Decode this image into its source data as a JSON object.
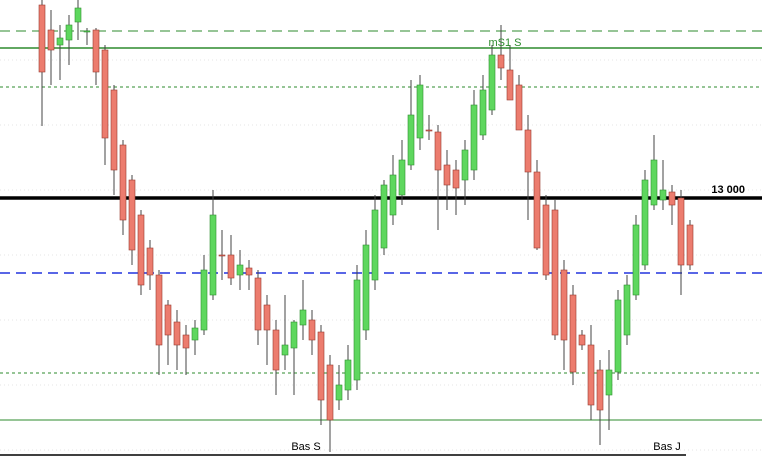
{
  "chart_data": {
    "type": "candlestick",
    "ylim": [
      12728,
      13198
    ],
    "up_color": "#5ed75e",
    "down_color": "#ec7c6e",
    "wick_color": "#444444",
    "open": [
      13193,
      13168,
      13153,
      13158,
      13176,
      13166,
      13168,
      13148,
      13108,
      13053,
      13018,
      12983,
      12950,
      12923,
      12893,
      12876,
      12863,
      12858,
      12868,
      12903,
      12943,
      12943,
      12923,
      12930,
      12920,
      12893,
      12868,
      12843,
      12850,
      12873,
      12878,
      12866,
      12833,
      12798,
      12808,
      12818,
      12868,
      12918,
      12950,
      12983,
      13003,
      13033,
      13060,
      13068,
      13066,
      13033,
      13028,
      13018,
      13028,
      13063,
      13088,
      13143,
      13128,
      13113,
      13068,
      13026,
      12993,
      12988,
      12928,
      12903,
      12863,
      12853,
      12828,
      12803,
      12826,
      12863,
      12903,
      12933,
      12993,
      12998,
      13006,
      13000,
      12973
    ],
    "high": [
      13198,
      13188,
      13173,
      13183,
      13198,
      13170,
      13170,
      13153,
      13113,
      13058,
      13023,
      12988,
      12958,
      12928,
      12898,
      12888,
      12873,
      12878,
      12943,
      13008,
      12968,
      12963,
      12948,
      12938,
      12928,
      12903,
      12878,
      12903,
      12878,
      12918,
      12888,
      12873,
      12843,
      12833,
      12853,
      12933,
      12968,
      13003,
      13018,
      13043,
      13058,
      13118,
      13123,
      13083,
      13073,
      13048,
      13038,
      13058,
      13108,
      13123,
      13153,
      13173,
      13153,
      13123,
      13083,
      13038,
      13003,
      12998,
      12938,
      12913,
      12868,
      12873,
      12838,
      12848,
      12908,
      12923,
      12983,
      13028,
      13063,
      13038,
      13013,
      13008,
      12978
    ],
    "low": [
      13072,
      13113,
      13118,
      13133,
      13158,
      13153,
      13113,
      13033,
      13003,
      12963,
      12933,
      12903,
      12908,
      12823,
      12833,
      12828,
      12823,
      12843,
      12863,
      12898,
      12918,
      12913,
      12908,
      12908,
      12853,
      12833,
      12803,
      12828,
      12803,
      12858,
      12843,
      12773,
      12746,
      12788,
      12798,
      12808,
      12858,
      12908,
      12943,
      12973,
      12993,
      13028,
      13048,
      13058,
      12968,
      12988,
      12983,
      12993,
      13018,
      13058,
      13083,
      13118,
      13098,
      13068,
      12978,
      12948,
      12918,
      12858,
      12828,
      12813,
      12848,
      12778,
      12753,
      12768,
      12818,
      12853,
      12898,
      12928,
      12988,
      12988,
      12973,
      12903,
      12928
    ],
    "close": [
      13126,
      13148,
      13160,
      13173,
      13190,
      13167,
      13126,
      13060,
      13028,
      12978,
      12948,
      12913,
      12923,
      12853,
      12863,
      12853,
      12850,
      12870,
      12928,
      12983,
      12942,
      12920,
      12933,
      12923,
      12868,
      12868,
      12828,
      12853,
      12876,
      12888,
      12858,
      12798,
      12778,
      12813,
      12838,
      12918,
      12953,
      12988,
      13013,
      13023,
      13038,
      13083,
      13113,
      13067,
      13028,
      13013,
      13010,
      13048,
      13093,
      13108,
      13143,
      13130,
      13098,
      13068,
      13026,
      12950,
      12923,
      12863,
      12858,
      12826,
      12853,
      12793,
      12788,
      12828,
      12898,
      12913,
      12973,
      13018,
      13038,
      13008,
      12993,
      12933,
      12933
    ],
    "levels": [
      {
        "value": 13167,
        "color": "#2e8b2e",
        "style": "dashed",
        "width": 1
      },
      {
        "value": 13150,
        "color": "#2e8b2e",
        "style": "solid",
        "width": 1.5
      },
      {
        "value": 13111,
        "color": "#2e8b2e",
        "style": "dotted",
        "width": 1
      },
      {
        "value": 13000,
        "label": "13 000",
        "color": "#000000",
        "style": "solid",
        "width": 3.5
      },
      {
        "value": 12925,
        "color": "#2233dd",
        "style": "dashed",
        "width": 1.5
      },
      {
        "value": 12825,
        "color": "#2e8b2e",
        "style": "dotted",
        "width": 1
      },
      {
        "value": 12778,
        "color": "#2e8b2e",
        "style": "solid",
        "width": 1
      },
      {
        "value": 12743,
        "color": "#000000",
        "style": "solid",
        "width": 1.5
      }
    ],
    "annotations": [
      "mS1 S",
      "Bas S",
      "Bas J"
    ]
  }
}
